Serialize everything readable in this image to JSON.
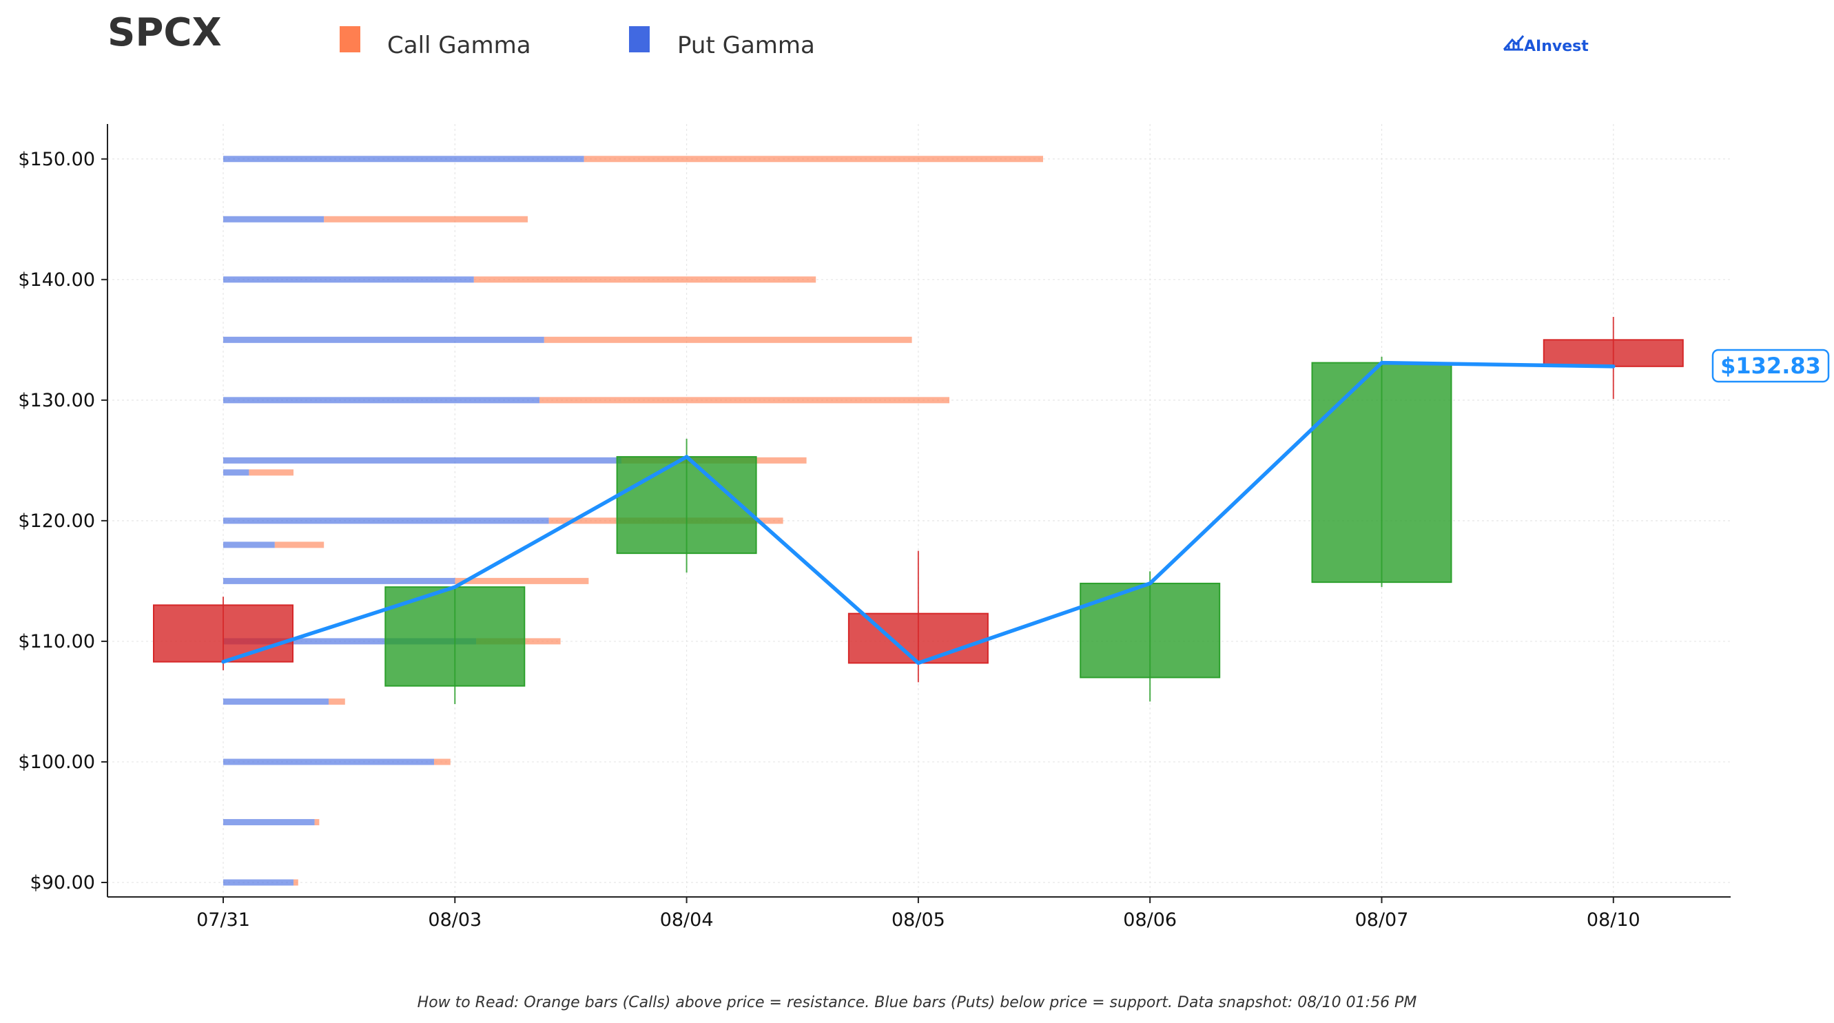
{
  "chart_data": {
    "type": "candlestick",
    "title": "SPCX",
    "brand": "AInvest",
    "legend": [
      {
        "name": "Call Gamma",
        "color": "#ff7f50"
      },
      {
        "name": "Put Gamma",
        "color": "#4169e1"
      }
    ],
    "legend_placement": "top",
    "colors": {
      "up": "#2ca02c",
      "down": "#d62728",
      "close_line": "#1e90ff",
      "call": "#ff7f50",
      "put": "#4169e1",
      "grid": "#e6e6e6"
    },
    "categories": [
      "07/31",
      "08/03",
      "08/04",
      "08/05",
      "08/06",
      "08/07",
      "08/10"
    ],
    "ohlc": [
      {
        "date": "07/31",
        "open": 113.0,
        "high": 113.7,
        "low": 107.6,
        "close": 108.3
      },
      {
        "date": "08/03",
        "open": 106.3,
        "high": 114.5,
        "low": 104.8,
        "close": 114.5
      },
      {
        "date": "08/04",
        "open": 117.3,
        "high": 126.8,
        "low": 115.7,
        "close": 125.3
      },
      {
        "date": "08/05",
        "open": 112.3,
        "high": 117.5,
        "low": 106.6,
        "close": 108.2
      },
      {
        "date": "08/06",
        "open": 107.0,
        "high": 115.8,
        "low": 105.0,
        "close": 114.8
      },
      {
        "date": "08/07",
        "open": 114.9,
        "high": 133.6,
        "low": 114.5,
        "close": 133.1
      },
      {
        "date": "08/10",
        "open": 135.0,
        "high": 136.9,
        "low": 130.1,
        "close": 132.8
      }
    ],
    "last_price_label": "$132.83",
    "gamma_levels": [
      {
        "strike": 150,
        "put": 1.54,
        "call": 1.96
      },
      {
        "strike": 145,
        "put": 0.43,
        "call": 0.87
      },
      {
        "strike": 140,
        "put": 1.07,
        "call": 1.46
      },
      {
        "strike": 135,
        "put": 1.37,
        "call": 1.57
      },
      {
        "strike": 130,
        "put": 1.35,
        "call": 1.75
      },
      {
        "strike": 125,
        "put": 1.7,
        "call": 0.79
      },
      {
        "strike": 124,
        "put": 0.11,
        "call": 0.19
      },
      {
        "strike": 120,
        "put": 1.39,
        "call": 1.0
      },
      {
        "strike": 118,
        "put": 0.22,
        "call": 0.21
      },
      {
        "strike": 115,
        "put": 0.99,
        "call": 0.57
      },
      {
        "strike": 110,
        "put": 1.08,
        "call": 0.36
      },
      {
        "strike": 105,
        "put": 0.45,
        "call": 0.07
      },
      {
        "strike": 100,
        "put": 0.9,
        "call": 0.07
      },
      {
        "strike": 95,
        "put": 0.39,
        "call": 0.02
      },
      {
        "strike": 90,
        "put": 0.3,
        "call": 0.02
      }
    ],
    "y_ticks": [
      "$90.00",
      "$100.00",
      "$110.00",
      "$120.00",
      "$130.00",
      "$140.00",
      "$150.00"
    ],
    "ylim": [
      88.8,
      152.9
    ],
    "grid": true,
    "footnote": "How to Read: Orange bars (Calls) above price = resistance. Blue bars (Puts) below price = support. Data snapshot: 08/10 01:56 PM"
  }
}
